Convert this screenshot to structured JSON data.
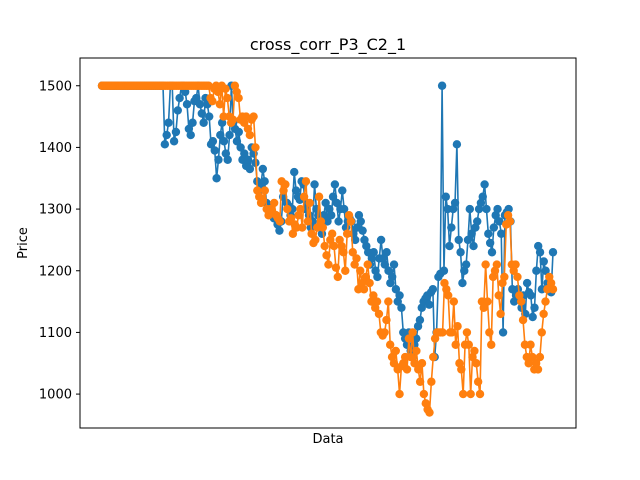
{
  "chart_data": {
    "type": "line",
    "title": "cross_corr_P3_C2_1",
    "xlabel": "Data",
    "ylabel": "Price",
    "ylim": [
      945,
      1545
    ],
    "x_ticks_visible": false,
    "yticks": [
      1000,
      1100,
      1200,
      1300,
      1400,
      1500
    ],
    "marker": "circle",
    "grid": false,
    "series": [
      {
        "color": "#1f77b4",
        "values": [
          1500,
          1500,
          1500,
          1500,
          1500,
          1500,
          1500,
          1500,
          1500,
          1500,
          1500,
          1500,
          1500,
          1500,
          1500,
          1500,
          1500,
          1500,
          1500,
          1500,
          1500,
          1500,
          1500,
          1500,
          1500,
          1500,
          1500,
          1500,
          1500,
          1500,
          1500,
          1500,
          1500,
          1500,
          1405,
          1420,
          1440,
          1500,
          1500,
          1410,
          1425,
          1460,
          1480,
          1500,
          1500,
          1490,
          1470,
          1430,
          1420,
          1440,
          1475,
          1480,
          1500,
          1470,
          1455,
          1440,
          1480,
          1470,
          1450,
          1405,
          1410,
          1395,
          1350,
          1380,
          1420,
          1440,
          1410,
          1390,
          1380,
          1420,
          1500,
          1440,
          1430,
          1410,
          1425,
          1400,
          1380,
          1390,
          1370,
          1380,
          1365,
          1400,
          1390,
          1375,
          1345,
          1330,
          1340,
          1365,
          1345,
          1310,
          1305,
          1300,
          1295,
          1285,
          1290,
          1275,
          1265,
          1280,
          1320,
          1340,
          1310,
          1305,
          1290,
          1300,
          1360,
          1330,
          1320,
          1315,
          1345,
          1340,
          1300,
          1310,
          1290,
          1270,
          1280,
          1340,
          1300,
          1290,
          1270,
          1260,
          1290,
          1310,
          1280,
          1300,
          1290,
          1320,
          1340,
          1310,
          1280,
          1300,
          1330,
          1300,
          1270,
          1280,
          1285,
          1280,
          1260,
          1250,
          1270,
          1290,
          1280,
          1265,
          1250,
          1240,
          1230,
          1210,
          1220,
          1230,
          1200,
          1190,
          1220,
          1250,
          1220,
          1210,
          1230,
          1200,
          1180,
          1190,
          1210,
          1170,
          1150,
          1160,
          1140,
          1100,
          1090,
          1080,
          1100,
          1070,
          1060,
          1080,
          1090,
          1110,
          1120,
          1140,
          1150,
          1155,
          1160,
          1145,
          1165,
          1170,
          1060,
          1100,
          1190,
          1195,
          1500,
          1200,
          1320,
          1300,
          1240,
          1270,
          1300,
          1310,
          1405,
          1250,
          1230,
          1180,
          1200,
          1210,
          1250,
          1300,
          1260,
          1240,
          1270,
          1280,
          1300,
          1310,
          1320,
          1340,
          1300,
          1260,
          1245,
          1230,
          1270,
          1290,
          1300,
          1280,
          1260,
          1100,
          1290,
          1295,
          1300,
          1280,
          1170,
          1150,
          1160,
          1170,
          1155,
          1140,
          1160,
          1130,
          1180,
          1165,
          1160,
          1125,
          1140,
          1200,
          1240,
          1230,
          1170,
          1215,
          1200,
          1180,
          1170,
          1165,
          1230
        ]
      },
      {
        "color": "#ff7f0e",
        "values": [
          1500,
          1500,
          1500,
          1500,
          1500,
          1500,
          1500,
          1500,
          1500,
          1500,
          1500,
          1500,
          1500,
          1500,
          1500,
          1500,
          1500,
          1500,
          1500,
          1500,
          1500,
          1500,
          1500,
          1500,
          1500,
          1500,
          1500,
          1500,
          1500,
          1500,
          1500,
          1500,
          1500,
          1500,
          1500,
          1500,
          1500,
          1500,
          1500,
          1500,
          1500,
          1500,
          1500,
          1500,
          1500,
          1500,
          1500,
          1500,
          1500,
          1500,
          1500,
          1500,
          1500,
          1500,
          1500,
          1500,
          1500,
          1500,
          1480,
          1475,
          1495,
          1500,
          1490,
          1470,
          1500,
          1450,
          1495,
          1480,
          1450,
          1440,
          1445,
          1500,
          1490,
          1480,
          1445,
          1450,
          1440,
          1450,
          1430,
          1420,
          1445,
          1450,
          1400,
          1330,
          1320,
          1310,
          1315,
          1330,
          1300,
          1290,
          1300,
          1295,
          1310,
          1290,
          1285,
          1280,
          1345,
          1330,
          1340,
          1300,
          1280,
          1285,
          1260,
          1275,
          1270,
          1290,
          1300,
          1270,
          1320,
          1345,
          1280,
          1310,
          1260,
          1245,
          1250,
          1270,
          1320,
          1280,
          1270,
          1240,
          1225,
          1210,
          1250,
          1260,
          1240,
          1205,
          1190,
          1250,
          1240,
          1230,
          1200,
          1260,
          1290,
          1280,
          1230,
          1210,
          1220,
          1170,
          1200,
          1180,
          1170,
          1190,
          1210,
          1180,
          1150,
          1160,
          1140,
          1150,
          1130,
          1100,
          1095,
          1100,
          1120,
          1150,
          1080,
          1060,
          1050,
          1070,
          1040,
          1000,
          1045,
          1050,
          1060,
          1040,
          1090,
          1060,
          1100,
          1050,
          1070,
          1040,
          1020,
          1050,
          1000,
          985,
          975,
          970,
          1020,
          1060,
          1090,
          1100,
          1100,
          1100,
          1100,
          1180,
          1170,
          1160,
          1100,
          1100,
          1150,
          1080,
          1110,
          1050,
          1040,
          1000,
          1080,
          1100,
          1080,
          1000,
          1060,
          1070,
          1050,
          1020,
          1000,
          1150,
          1140,
          1210,
          1150,
          1100,
          1080,
          1190,
          1200,
          1210,
          1160,
          1130,
          1180,
          1190,
          1275,
          1290,
          1280,
          1210,
          1200,
          1210,
          1190,
          1160,
          1150,
          1120,
          1080,
          1060,
          1050,
          1080,
          1060,
          1040,
          1050,
          1040,
          1060,
          1100,
          1130,
          1150,
          1170,
          1190,
          1180,
          1170
        ]
      }
    ]
  }
}
